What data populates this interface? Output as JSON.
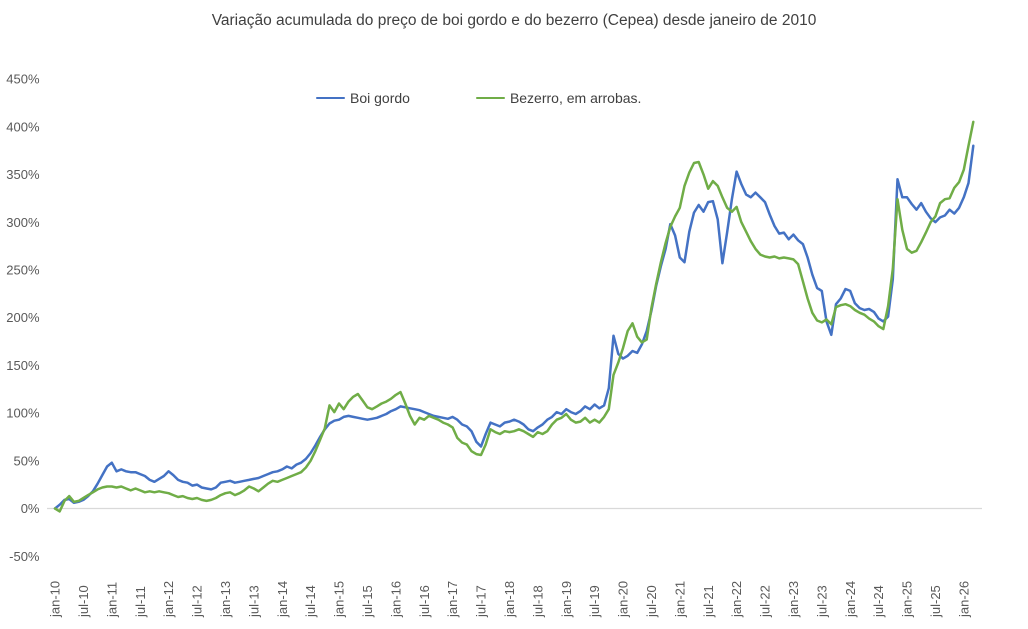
{
  "chart_data": {
    "type": "line",
    "title": "Variação acumulada do preço de boi gordo  e do bezerro (Cepea) desde janeiro de 2010",
    "title_color": "#404040",
    "axis_label_color": "#595959",
    "zero_line_color": "#d9d9d9",
    "x_unit": "month",
    "x_range_note": "monthly points from jan-2010 to mar-2026",
    "x_ticks_every_months": 6,
    "x_tick_labels": [
      "jan-10",
      "jul-10",
      "jan-11",
      "jul-11",
      "jan-12",
      "jul-12",
      "jan-13",
      "jul-13",
      "jan-14",
      "jul-14",
      "jan-15",
      "jul-15",
      "jan-16",
      "jul-16",
      "jan-17",
      "jul-17",
      "jan-18",
      "jul-18",
      "jan-19",
      "jul-19",
      "jan-20",
      "jul-20",
      "jan-21",
      "jul-21",
      "jan-22",
      "jul-22",
      "jan-23",
      "jul-23",
      "jan-24",
      "jul-24",
      "jan-25",
      "jul-25",
      "jan-26"
    ],
    "y_ticks": [
      450,
      400,
      350,
      300,
      250,
      200,
      150,
      100,
      50,
      0,
      -50
    ],
    "y_tick_suffix": "%",
    "ylim": [
      -50,
      450
    ],
    "grid": "none (only 0% baseline drawn)",
    "legend_position": "top-center",
    "series": [
      {
        "name": "Boi gordo",
        "color": "#4472C4",
        "values": [
          0,
          4,
          9,
          10,
          6,
          7,
          9,
          13,
          18,
          26,
          35,
          44,
          48,
          39,
          41,
          39,
          38,
          38,
          36,
          34,
          30,
          28,
          31,
          34,
          39,
          35,
          30,
          28,
          27,
          24,
          25,
          22,
          21,
          20,
          22,
          27,
          28,
          29,
          27,
          28,
          29,
          30,
          31,
          32,
          34,
          36,
          38,
          39,
          41,
          44,
          42,
          46,
          48,
          52,
          58,
          66,
          75,
          83,
          89,
          92,
          93,
          96,
          97,
          96,
          95,
          94,
          93,
          94,
          95,
          97,
          99,
          102,
          104,
          107,
          106,
          105,
          104,
          103,
          101,
          99,
          97,
          96,
          95,
          94,
          96,
          93,
          88,
          86,
          81,
          70,
          65,
          78,
          90,
          88,
          86,
          90,
          91,
          93,
          91,
          88,
          83,
          81,
          85,
          88,
          93,
          96,
          101,
          99,
          104,
          101,
          99,
          102,
          107,
          104,
          109,
          105,
          108,
          126,
          181,
          162,
          157,
          160,
          165,
          163,
          172,
          186,
          207,
          233,
          254,
          272,
          298,
          286,
          263,
          258,
          290,
          310,
          318,
          311,
          321,
          322,
          303,
          257,
          289,
          324,
          353,
          340,
          329,
          326,
          331,
          326,
          321,
          308,
          296,
          288,
          289,
          282,
          287,
          281,
          277,
          263,
          245,
          231,
          228,
          196,
          182,
          214,
          220,
          230,
          228,
          215,
          210,
          208,
          209,
          206,
          199,
          196,
          201,
          240,
          345,
          326,
          326,
          319,
          313,
          320,
          311,
          304,
          300,
          305,
          307,
          313,
          309,
          315,
          326,
          341,
          380
        ]
      },
      {
        "name": "Bezerro, em arrobas.",
        "color": "#70AD47",
        "values": [
          0,
          -3,
          8,
          13,
          7,
          8,
          11,
          14,
          17,
          20,
          22,
          23,
          23,
          22,
          23,
          21,
          19,
          21,
          19,
          17,
          18,
          17,
          18,
          17,
          16,
          14,
          12,
          13,
          11,
          10,
          11,
          9,
          8,
          9,
          11,
          14,
          16,
          17,
          14,
          16,
          19,
          23,
          21,
          18,
          22,
          26,
          29,
          28,
          30,
          32,
          34,
          36,
          38,
          43,
          50,
          60,
          72,
          84,
          108,
          101,
          110,
          104,
          112,
          117,
          120,
          113,
          106,
          104,
          107,
          110,
          112,
          115,
          119,
          122,
          110,
          97,
          88,
          95,
          93,
          97,
          95,
          93,
          90,
          88,
          85,
          74,
          69,
          67,
          60,
          57,
          56,
          67,
          83,
          80,
          78,
          81,
          80,
          81,
          83,
          81,
          78,
          75,
          80,
          78,
          81,
          88,
          93,
          95,
          99,
          93,
          90,
          91,
          95,
          90,
          93,
          90,
          96,
          104,
          140,
          153,
          168,
          186,
          194,
          180,
          174,
          177,
          210,
          235,
          258,
          278,
          295,
          306,
          315,
          338,
          352,
          362,
          363,
          350,
          335,
          343,
          338,
          326,
          315,
          311,
          316,
          300,
          290,
          280,
          272,
          266,
          264,
          263,
          264,
          262,
          263,
          262,
          261,
          256,
          238,
          220,
          205,
          197,
          195,
          198,
          193,
          211,
          213,
          214,
          212,
          208,
          205,
          203,
          199,
          196,
          191,
          188,
          212,
          251,
          324,
          292,
          272,
          268,
          270,
          279,
          289,
          300,
          306,
          320,
          324,
          325,
          336,
          342,
          355,
          380,
          405
        ]
      }
    ]
  }
}
